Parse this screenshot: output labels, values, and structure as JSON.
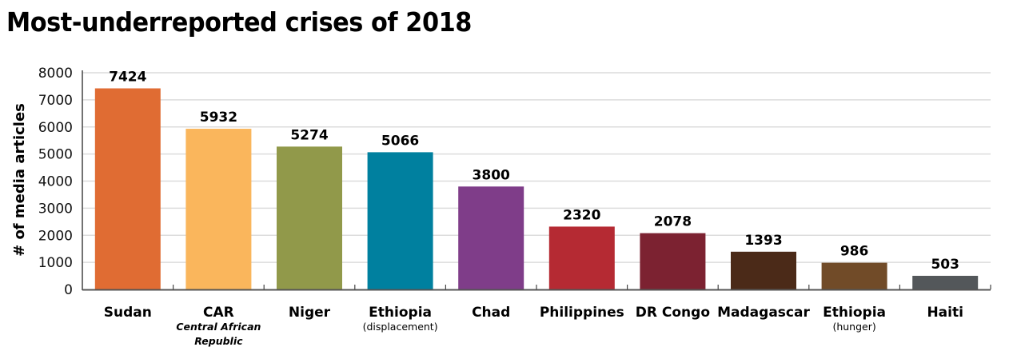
{
  "chart_data": {
    "type": "bar",
    "title": "Most-underreported crises of 2018",
    "xlabel": "",
    "ylabel": "# of media articles",
    "ylim": [
      0,
      8000
    ],
    "yticks": [
      0,
      1000,
      2000,
      3000,
      4000,
      5000,
      6000,
      7000,
      8000
    ],
    "grid": true,
    "categories": [
      "Sudan",
      "CAR",
      "Niger",
      "Ethiopia",
      "Chad",
      "Philippines",
      "DR Congo",
      "Madagascar",
      "Ethiopia",
      "Haiti"
    ],
    "subtitles": [
      [],
      [
        "Central African",
        "Republic"
      ],
      [],
      [
        "(displacement)"
      ],
      [],
      [],
      [],
      [],
      [
        "(hunger)"
      ],
      []
    ],
    "subtitle_italic": [
      false,
      true,
      false,
      false,
      false,
      false,
      false,
      false,
      false,
      false
    ],
    "values": [
      7424,
      5932,
      5274,
      5066,
      3800,
      2320,
      2078,
      1393,
      986,
      503
    ],
    "colors": [
      "#e06c33",
      "#fab65c",
      "#91994a",
      "#00809f",
      "#7f3d89",
      "#b52a33",
      "#7c2231",
      "#4b2a18",
      "#714b28",
      "#53575a"
    ]
  }
}
